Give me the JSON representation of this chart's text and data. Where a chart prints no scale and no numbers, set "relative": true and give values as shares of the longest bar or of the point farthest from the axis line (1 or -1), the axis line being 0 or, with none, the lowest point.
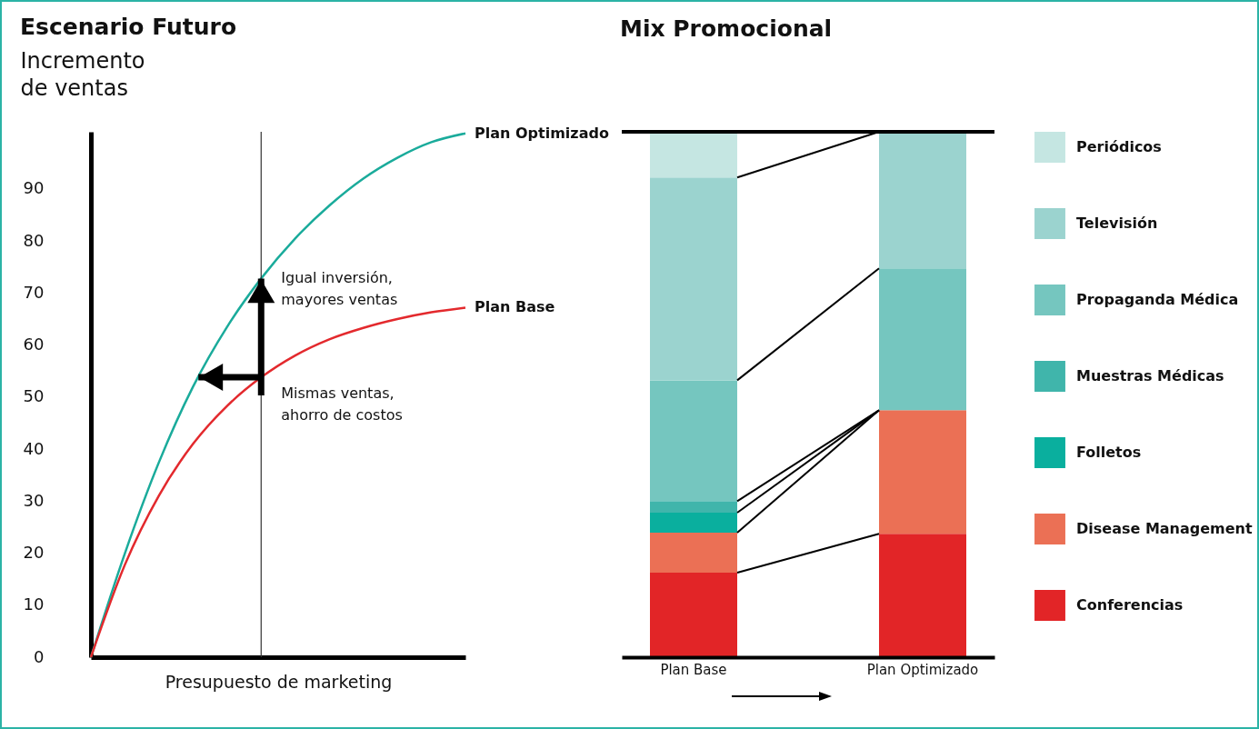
{
  "chart_data": [
    {
      "type": "line",
      "title": "Escenario Futuro",
      "xlabel": "Presupuesto de marketing",
      "ylabel": "Incremento\nde ventas",
      "categories": [
        null,
        null,
        null,
        null,
        null,
        null,
        null,
        null,
        null,
        null,
        null,
        null
      ],
      "ylim": [
        0,
        101
      ],
      "yticks": [
        0,
        10,
        20,
        30,
        40,
        50,
        60,
        70,
        80,
        90
      ],
      "series": [
        {
          "name": "Plan Optimizado",
          "color": "#1aab9b",
          "values": [
            0,
            20,
            37.5,
            52,
            63.5,
            72.8,
            80.5,
            86.8,
            92,
            96,
            99,
            100.7
          ]
        },
        {
          "name": "Plan Base",
          "color": "#e3292d",
          "values": [
            0,
            17.8,
            31.1,
            41,
            48.3,
            53.8,
            58,
            61.1,
            63.3,
            65,
            66.3,
            67.2
          ]
        }
      ],
      "annotations": [
        "Igual inversión,\nmayores ventas",
        "Mismas ventas,\nahorro de costos"
      ]
    },
    {
      "type": "bar",
      "title": "Mix Promocional",
      "categories": [
        "Plan Base",
        "Plan Optimizado"
      ],
      "stacked": true,
      "relative": true,
      "legend": "right",
      "series": [
        {
          "name": "Conferencias",
          "color": "#e22527",
          "values": [
            0.161,
            0.235
          ]
        },
        {
          "name": "Disease Management",
          "color": "#eb7055",
          "values": [
            0.076,
            0.235
          ]
        },
        {
          "name": "Folletos",
          "color": "#0aaf9e",
          "values": [
            0.038,
            0
          ]
        },
        {
          "name": "Muestras Médicas",
          "color": "#40b5ab",
          "values": [
            0.022,
            0
          ]
        },
        {
          "name": "Propaganda Médica",
          "color": "#75c6bf",
          "values": [
            0.23,
            0.27
          ]
        },
        {
          "name": "Televisión",
          "color": "#9bd3cf",
          "values": [
            0.386,
            0.26
          ]
        },
        {
          "name": "Periódicos",
          "color": "#c5e6e2",
          "values": [
            0.087,
            0
          ]
        }
      ],
      "ref_lines": [
        {
          "axis": "y",
          "value": 1
        }
      ]
    }
  ]
}
